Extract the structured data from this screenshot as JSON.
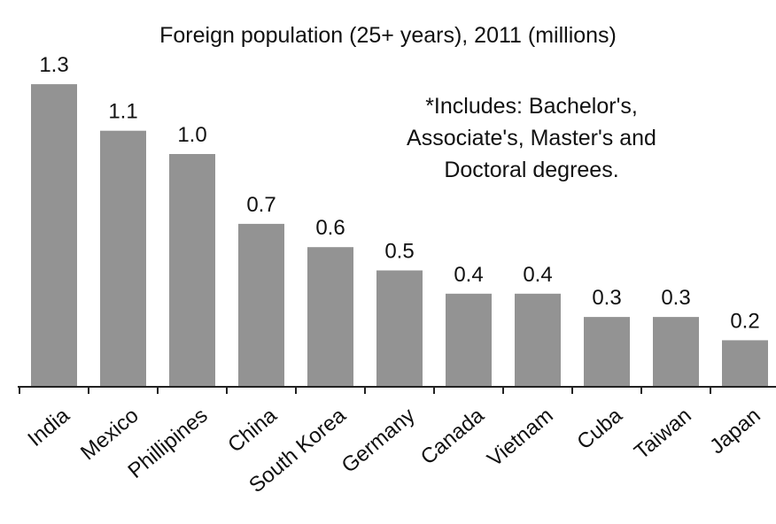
{
  "chart_data": {
    "type": "bar",
    "title": "Foreign population (25+ years), 2011 (millions)",
    "categories": [
      "India",
      "Mexico",
      "Phillipines",
      "China",
      "South Korea",
      "Germany",
      "Canada",
      "Vietnam",
      "Cuba",
      "Taiwan",
      "Japan"
    ],
    "values": [
      1.3,
      1.1,
      1.0,
      0.7,
      0.6,
      0.5,
      0.4,
      0.4,
      0.3,
      0.3,
      0.2
    ],
    "value_labels": [
      "1.3",
      "1.1",
      "1.0",
      "0.7",
      "0.6",
      "0.5",
      "0.4",
      "0.4",
      "0.3",
      "0.3",
      "0.2"
    ],
    "annotation_lines": [
      "*Includes: Bachelor's,",
      "Associate's, Master's and",
      "Doctoral degrees."
    ],
    "xlabel": "",
    "ylabel": "",
    "ylim": [
      0,
      1.4
    ],
    "grid": false,
    "legend": "none",
    "bar_color": "#939393",
    "axis_color": "#222222"
  }
}
